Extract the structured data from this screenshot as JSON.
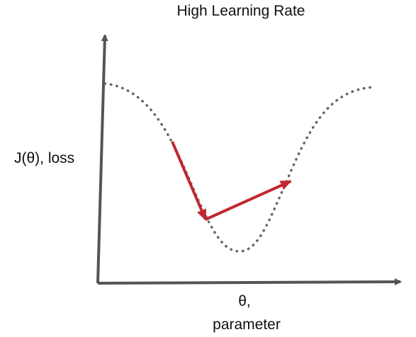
{
  "title": "High Learning Rate",
  "y_axis_label": "J(θ), loss",
  "x_axis_label": [
    "θ,",
    "parameter"
  ]
}
